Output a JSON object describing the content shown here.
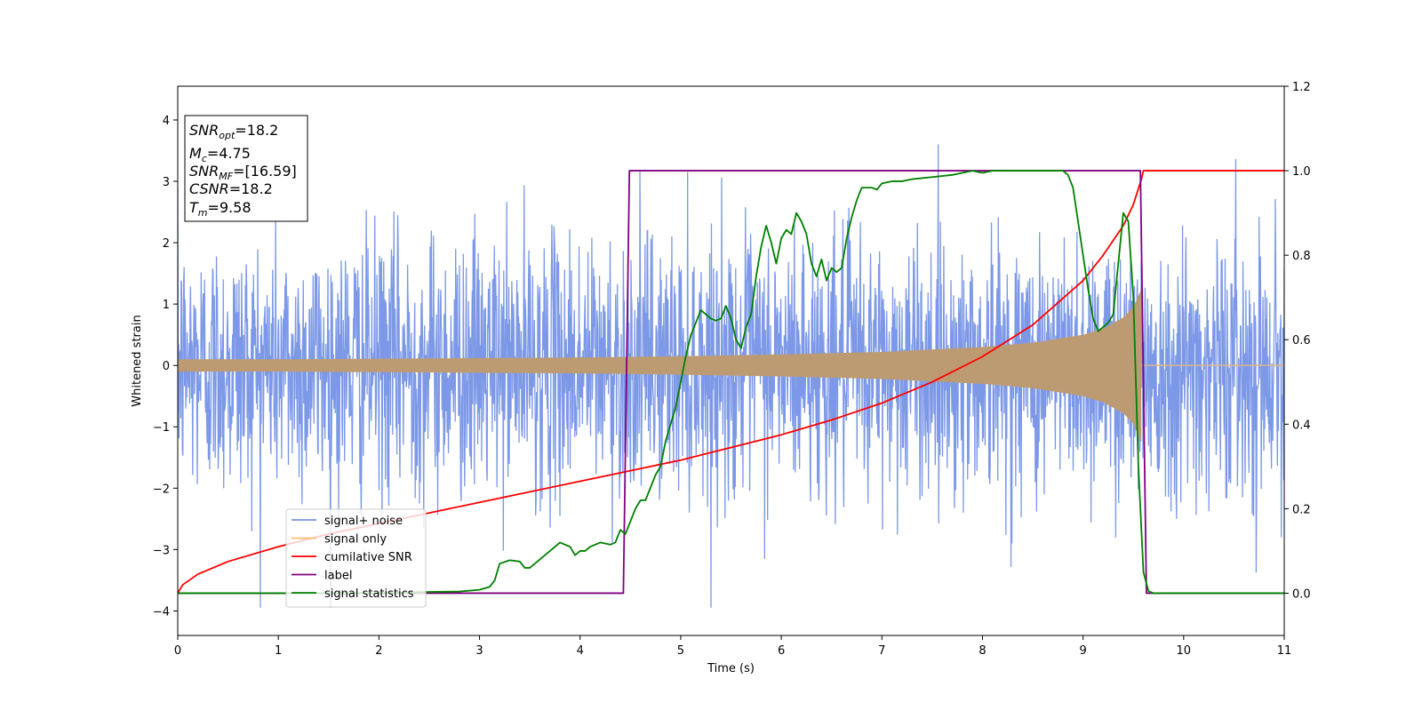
{
  "chart_data": {
    "type": "line",
    "xlabel": "Time (s)",
    "ylabel_left": "Whitened strain",
    "ylabel_right": "",
    "xlim": [
      0,
      11
    ],
    "ylim_left": [
      -4.4,
      4.55
    ],
    "ylim_right": [
      -0.1,
      1.2
    ],
    "xticks": [
      0,
      1,
      2,
      3,
      4,
      5,
      6,
      7,
      8,
      9,
      10,
      11
    ],
    "yticks_left": [
      -4,
      -3,
      -2,
      -1,
      0,
      1,
      2,
      3,
      4
    ],
    "yticks_right": [
      0.0,
      0.2,
      0.4,
      0.6,
      0.8,
      1.0,
      1.2
    ],
    "ytick_labels_right": [
      "0.0",
      "0.2",
      "0.4",
      "0.6",
      "0.8",
      "1.0",
      "1.2"
    ],
    "grid": false,
    "legend_position": "lower-left",
    "info_box": {
      "snr_opt_name": "SNR",
      "snr_opt_sub": "opt",
      "snr_opt_value": "=18.2",
      "mc_name": "M",
      "mc_sub": "c",
      "mc_value": "=4.75",
      "snr_mf_name": "SNR",
      "snr_mf_sub": "MF",
      "snr_mf_value": "=[16.59]",
      "csnr_name": "CSNR",
      "csnr_value": "=18.2",
      "tm_name": "T",
      "tm_sub": "m",
      "tm_value": "=9.58"
    },
    "series": [
      {
        "name": "signal+ noise",
        "axis": "left",
        "color": "#7592e6",
        "kind": "gaussian noise, sigma ~1, plus chirp signal",
        "noise_std": 1.05,
        "x_range": [
          0,
          11
        ]
      },
      {
        "name": "signal only",
        "axis": "left",
        "color": "#ffbd70",
        "kind": "chirp with amplitude envelope, ends at merger",
        "envelope": {
          "x": [
            0,
            1,
            2,
            3,
            4,
            5,
            6,
            7,
            8,
            8.5,
            9,
            9.2,
            9.4,
            9.5,
            9.58
          ],
          "y": [
            0.1,
            0.1,
            0.11,
            0.12,
            0.13,
            0.15,
            0.18,
            0.22,
            0.3,
            0.37,
            0.5,
            0.6,
            0.78,
            0.95,
            1.25
          ]
        },
        "end_time": 9.58,
        "post_value": 0.0
      },
      {
        "name": "cumilative SNR",
        "axis": "right",
        "color": "#ff0000",
        "x": [
          0,
          0.05,
          0.2,
          0.5,
          1,
          1.5,
          2,
          2.5,
          3,
          3.5,
          4,
          4.5,
          5,
          5.5,
          6,
          6.5,
          7,
          7.5,
          8,
          8.5,
          9,
          9.2,
          9.4,
          9.5,
          9.58,
          9.6,
          11
        ],
        "y": [
          0.0,
          0.02,
          0.045,
          0.075,
          0.11,
          0.14,
          0.165,
          0.19,
          0.215,
          0.24,
          0.265,
          0.29,
          0.315,
          0.345,
          0.375,
          0.41,
          0.45,
          0.5,
          0.56,
          0.635,
          0.74,
          0.8,
          0.87,
          0.92,
          0.98,
          1.0,
          1.0
        ]
      },
      {
        "name": "label",
        "axis": "right",
        "color": "#800080",
        "x": [
          0,
          4.43,
          4.49,
          9.57,
          9.63,
          11
        ],
        "y": [
          0.0,
          0.0,
          1.0,
          1.0,
          0.0,
          0.0
        ]
      },
      {
        "name": "signal statistics",
        "axis": "right",
        "color": "#008000",
        "x": [
          0,
          0.5,
          1,
          1.5,
          2,
          2.5,
          2.8,
          3.0,
          3.1,
          3.15,
          3.2,
          3.3,
          3.4,
          3.45,
          3.5,
          3.6,
          3.7,
          3.8,
          3.9,
          3.95,
          4.0,
          4.05,
          4.1,
          4.2,
          4.3,
          4.35,
          4.4,
          4.45,
          4.5,
          4.55,
          4.6,
          4.65,
          4.7,
          4.75,
          4.8,
          4.85,
          4.9,
          4.95,
          5.0,
          5.05,
          5.1,
          5.15,
          5.2,
          5.3,
          5.35,
          5.4,
          5.45,
          5.5,
          5.55,
          5.6,
          5.65,
          5.7,
          5.75,
          5.8,
          5.85,
          5.9,
          5.95,
          6.0,
          6.05,
          6.1,
          6.15,
          6.2,
          6.25,
          6.3,
          6.35,
          6.4,
          6.45,
          6.5,
          6.55,
          6.6,
          6.65,
          6.7,
          6.75,
          6.8,
          6.9,
          6.95,
          7.0,
          7.1,
          7.2,
          7.3,
          7.5,
          7.7,
          7.9,
          8.0,
          8.1,
          8.2,
          8.5,
          8.8,
          8.85,
          8.9,
          8.95,
          9.0,
          9.05,
          9.1,
          9.15,
          9.2,
          9.25,
          9.3,
          9.35,
          9.4,
          9.45,
          9.5,
          9.55,
          9.6,
          9.65,
          9.7,
          10,
          11
        ],
        "y": [
          0.0,
          0.0,
          0.0,
          0.0,
          0.0,
          0.003,
          0.004,
          0.008,
          0.015,
          0.03,
          0.07,
          0.078,
          0.075,
          0.06,
          0.06,
          0.08,
          0.1,
          0.12,
          0.11,
          0.09,
          0.1,
          0.1,
          0.11,
          0.12,
          0.115,
          0.12,
          0.15,
          0.14,
          0.17,
          0.2,
          0.22,
          0.22,
          0.25,
          0.28,
          0.3,
          0.36,
          0.4,
          0.44,
          0.5,
          0.56,
          0.61,
          0.64,
          0.67,
          0.65,
          0.645,
          0.65,
          0.68,
          0.65,
          0.6,
          0.58,
          0.63,
          0.66,
          0.75,
          0.82,
          0.87,
          0.83,
          0.78,
          0.84,
          0.86,
          0.85,
          0.9,
          0.88,
          0.85,
          0.78,
          0.75,
          0.79,
          0.74,
          0.77,
          0.76,
          0.77,
          0.84,
          0.89,
          0.93,
          0.96,
          0.96,
          0.955,
          0.97,
          0.975,
          0.975,
          0.98,
          0.985,
          0.99,
          1.0,
          0.995,
          1.0,
          1.0,
          1.0,
          1.0,
          0.99,
          0.96,
          0.88,
          0.8,
          0.72,
          0.65,
          0.62,
          0.63,
          0.64,
          0.66,
          0.78,
          0.9,
          0.88,
          0.7,
          0.3,
          0.05,
          0.005,
          0.0,
          0.0,
          0.0
        ]
      }
    ]
  }
}
